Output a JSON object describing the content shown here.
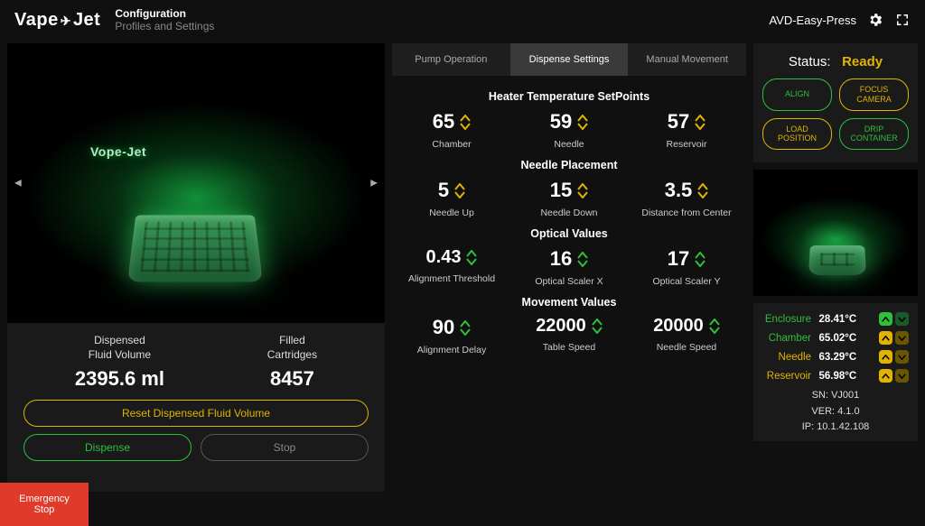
{
  "header": {
    "logo_left": "Vape",
    "logo_right": "Jet",
    "title": "Configuration",
    "subtitle": "Profiles and Settings",
    "device_name": "AVD-Easy-Press"
  },
  "colors": {
    "green": "#2fbf3c",
    "yellow": "#e0b400",
    "grey": "#888888",
    "panel_bg": "#1a1a1a",
    "danger": "#e03a2a"
  },
  "camera": {
    "overlay_text": "Vope-Jet"
  },
  "left_stats": {
    "dispensed_label_l1": "Dispensed",
    "dispensed_label_l2": "Fluid Volume",
    "dispensed_value": "2395.6 ml",
    "filled_label_l1": "Filled",
    "filled_label_l2": "Cartridges",
    "filled_value": "8457",
    "reset_btn": "Reset Dispensed Fluid Volume",
    "dispense_btn": "Dispense",
    "stop_btn": "Stop"
  },
  "tabs": {
    "pump": "Pump Operation",
    "dispense": "Dispense Settings",
    "manual": "Manual Movement"
  },
  "sections": {
    "heater": {
      "title": "Heater Temperature SetPoints",
      "items": [
        {
          "value": "65",
          "label": "Chamber"
        },
        {
          "value": "59",
          "label": "Needle"
        },
        {
          "value": "57",
          "label": "Reservoir"
        }
      ]
    },
    "needle": {
      "title": "Needle Placement",
      "items": [
        {
          "value": "5",
          "label": "Needle Up"
        },
        {
          "value": "15",
          "label": "Needle Down"
        },
        {
          "value": "3.5",
          "label": "Distance from Center"
        }
      ]
    },
    "optical": {
      "title": "Optical Values",
      "items": [
        {
          "value": "0.43",
          "label": "Alignment Threshold"
        },
        {
          "value": "16",
          "label": "Optical Scaler X"
        },
        {
          "value": "17",
          "label": "Optical Scaler Y"
        }
      ]
    },
    "movement": {
      "title": "Movement Values",
      "items": [
        {
          "value": "90",
          "label": "Alignment Delay"
        },
        {
          "value": "22000",
          "label": "Table Speed"
        },
        {
          "value": "20000",
          "label": "Needle Speed"
        }
      ]
    }
  },
  "status": {
    "label": "Status:",
    "value": "Ready",
    "buttons": {
      "align": "ALIGN",
      "focus": "FOCUS CAMERA",
      "load": "LOAD POSITION",
      "drip": "DRIP CONTAINER"
    }
  },
  "temps": [
    {
      "name": "Enclosure",
      "value": "28.41°C",
      "name_color": "#2fbf3c",
      "ind": "green"
    },
    {
      "name": "Chamber",
      "value": "65.02°C",
      "name_color": "#2fbf3c",
      "ind": "yellow"
    },
    {
      "name": "Needle",
      "value": "63.29°C",
      "name_color": "#e0b400",
      "ind": "yellow"
    },
    {
      "name": "Reservoir",
      "value": "56.98°C",
      "name_color": "#e0b400",
      "ind": "yellow"
    }
  ],
  "sysinfo": {
    "sn": "SN: VJ001",
    "ver": "VER: 4.1.0",
    "ip": "IP: 10.1.42.108"
  },
  "emergency": "Emergency Stop"
}
